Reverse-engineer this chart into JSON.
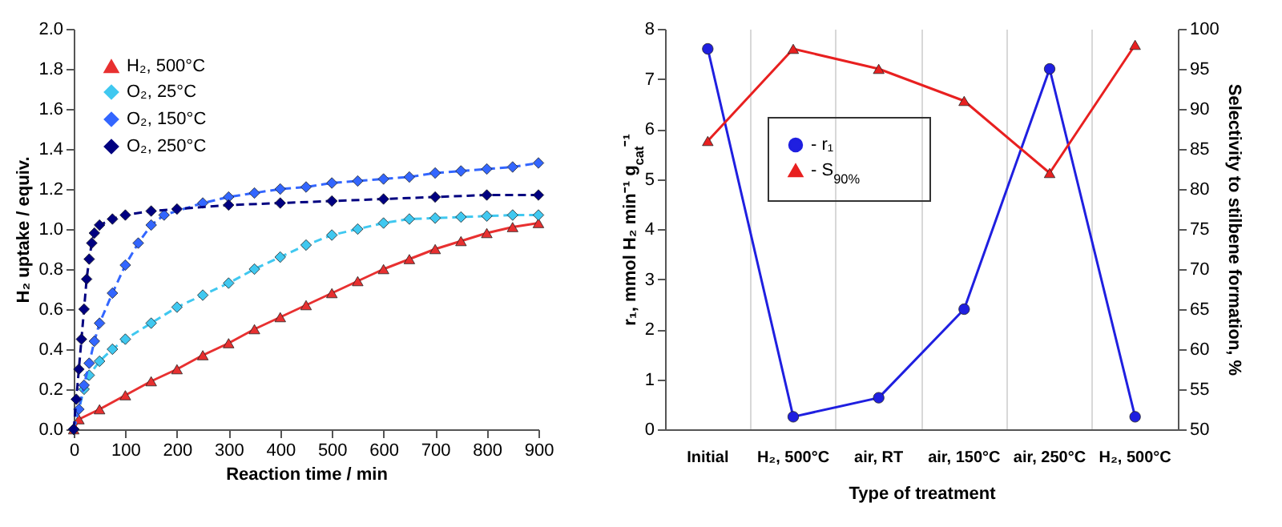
{
  "chart_data": [
    {
      "type": "line",
      "xlabel": "Reaction time / min",
      "ylabel": "H₂ uptake / equiv.",
      "xlim": [
        0,
        900
      ],
      "xticks": [
        0,
        100,
        200,
        300,
        400,
        500,
        600,
        700,
        800,
        900
      ],
      "ylim": [
        0,
        2
      ],
      "yticks": [
        {
          "value": 0,
          "label": "0.0"
        },
        0.2,
        0.4,
        0.6,
        0.8,
        {
          "value": 1,
          "label": "1.0"
        },
        1.2,
        1.4,
        1.6,
        1.8,
        {
          "value": 2,
          "label": "2.0"
        }
      ],
      "legend": "top left",
      "series": [
        {
          "name": "H₂, 500°C",
          "color": "#e83030",
          "marker": "triangle",
          "line_style": "solid",
          "x": [
            0,
            10,
            50,
            100,
            150,
            200,
            250,
            300,
            350,
            400,
            450,
            500,
            550,
            600,
            650,
            700,
            750,
            800,
            850,
            900
          ],
          "values": [
            0,
            0.05,
            0.1,
            0.17,
            0.24,
            0.3,
            0.37,
            0.43,
            0.5,
            0.56,
            0.62,
            0.68,
            0.74,
            0.8,
            0.85,
            0.9,
            0.94,
            0.98,
            1.01,
            1.03
          ]
        },
        {
          "name": "O₂, 25°C",
          "color": "#40c8f0",
          "marker": "diamond",
          "line_style": "dashed",
          "x": [
            0,
            20,
            30,
            50,
            75,
            100,
            150,
            200,
            250,
            300,
            350,
            400,
            450,
            500,
            550,
            600,
            650,
            700,
            750,
            800,
            850,
            900
          ],
          "values": [
            0,
            0.2,
            0.27,
            0.34,
            0.4,
            0.45,
            0.53,
            0.61,
            0.67,
            0.73,
            0.8,
            0.86,
            0.92,
            0.97,
            1.0,
            1.03,
            1.05,
            1.055,
            1.06,
            1.065,
            1.07,
            1.07
          ]
        },
        {
          "name": "O₂, 150°C",
          "color": "#3366ff",
          "marker": "diamond",
          "line_style": "dashed",
          "x": [
            0,
            10,
            20,
            30,
            40,
            50,
            75,
            100,
            125,
            150,
            175,
            250,
            300,
            350,
            400,
            450,
            500,
            550,
            600,
            650,
            700,
            750,
            800,
            850,
            900
          ],
          "values": [
            0,
            0.1,
            0.22,
            0.33,
            0.44,
            0.53,
            0.68,
            0.82,
            0.93,
            1.02,
            1.07,
            1.13,
            1.16,
            1.18,
            1.2,
            1.21,
            1.23,
            1.24,
            1.25,
            1.26,
            1.28,
            1.29,
            1.3,
            1.31,
            1.33
          ]
        },
        {
          "name": "O₂, 250°C",
          "color": "#000080",
          "marker": "diamond",
          "line_style": "dashed",
          "x": [
            0,
            5,
            10,
            15,
            20,
            25,
            30,
            35,
            40,
            50,
            75,
            100,
            150,
            200,
            300,
            400,
            500,
            600,
            700,
            800,
            900
          ],
          "values": [
            0,
            0.15,
            0.3,
            0.45,
            0.6,
            0.75,
            0.85,
            0.93,
            0.98,
            1.02,
            1.05,
            1.07,
            1.09,
            1.1,
            1.12,
            1.13,
            1.14,
            1.15,
            1.16,
            1.17,
            1.17
          ]
        }
      ]
    },
    {
      "type": "line",
      "xlabel": "Type of treatment",
      "ylabel": "r₁, mmol H₂ min⁻¹ g$_{cat}$⁻¹",
      "y2label": "Selectivity to stilbene formation, %",
      "categories": [
        "Initial",
        "H₂, 500°C",
        "air, RT",
        "air, 150°C",
        "air, 250°C",
        "H₂, 500°C"
      ],
      "ylim": [
        0,
        8
      ],
      "yticks": [
        0,
        1,
        2,
        3,
        4,
        5,
        6,
        7,
        8
      ],
      "y2lim": [
        50,
        100
      ],
      "y2ticks": [
        50,
        55,
        60,
        65,
        70,
        75,
        80,
        85,
        90,
        95,
        100
      ],
      "grid": "x",
      "legend": "top",
      "series": [
        {
          "name": "- r₁",
          "color": "#1f1fe0",
          "marker": "circle",
          "values": [
            7.6,
            0.25,
            0.63,
            2.4,
            7.2,
            0.25
          ]
        },
        {
          "name": "- S$_{90%}$",
          "color": "#e82020",
          "marker": "triangle",
          "axis": "y2",
          "values": [
            86,
            97.5,
            95,
            91,
            82,
            98
          ]
        }
      ]
    }
  ]
}
